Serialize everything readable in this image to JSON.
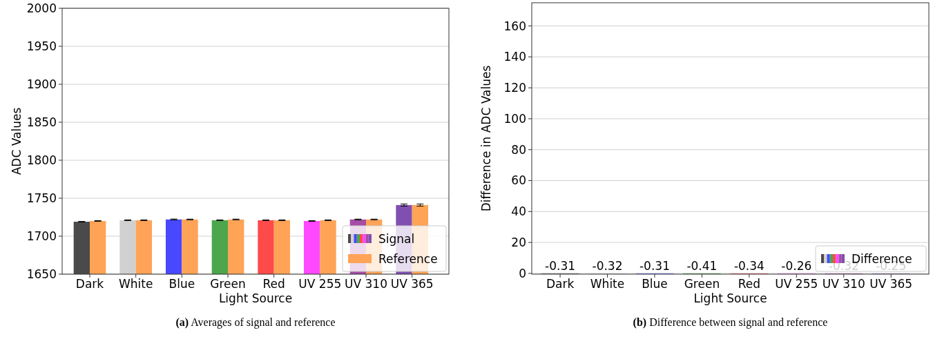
{
  "chart_data": [
    {
      "type": "bar",
      "xlabel": "Light Source",
      "ylabel": "ADC Values",
      "categories": [
        "Dark",
        "White",
        "Blue",
        "Green",
        "Red",
        "UV 255",
        "UV 310",
        "UV 365"
      ],
      "series": [
        {
          "name": "Signal",
          "colors": [
            "#4a4a4a",
            "#d0d0d0",
            "#4848ff",
            "#4ca64c",
            "#ff4a4a",
            "#ff48ff",
            "#a64ca6",
            "#8050b0"
          ],
          "values": [
            1719,
            1721,
            1722,
            1721,
            1721,
            1720,
            1722,
            1741
          ],
          "errors": [
            0.4,
            0.5,
            0.6,
            0.4,
            0.5,
            0.4,
            0.5,
            1.4
          ]
        },
        {
          "name": "Reference",
          "color": "#ffa357",
          "values": [
            1720,
            1721,
            1722,
            1722,
            1721,
            1721,
            1722,
            1741
          ],
          "errors": [
            0.4,
            0.5,
            0.5,
            0.5,
            0.5,
            0.5,
            0.5,
            1.4
          ]
        }
      ],
      "ylim": [
        1650,
        2000
      ],
      "yticks": [
        1650,
        1700,
        1750,
        1800,
        1850,
        1900,
        1950,
        2000
      ],
      "grid": "y",
      "legend": "bottom right",
      "annotations": [
        "(a) Averages of signal and reference"
      ]
    },
    {
      "type": "bar",
      "xlabel": "Light Source",
      "ylabel": "Difference in ADC Values",
      "categories": [
        "Dark",
        "White",
        "Blue",
        "Green",
        "Red",
        "UV 255",
        "UV 310",
        "UV 365"
      ],
      "series": [
        {
          "name": "Difference",
          "colors": [
            "#4a4a4a",
            "#d0d0d0",
            "#4848ff",
            "#4ca64c",
            "#ff4a4a",
            "#ff48ff",
            "#a64ca6",
            "#8050b0"
          ],
          "values": [
            -0.31,
            -0.32,
            -0.31,
            -0.41,
            -0.34,
            -0.26,
            -0.32,
            -0.25
          ]
        }
      ],
      "data_labels": true,
      "ylim": [
        -0.5,
        175
      ],
      "yticks": [
        0,
        20,
        40,
        60,
        80,
        100,
        120,
        140,
        160
      ],
      "grid": "y",
      "legend": "bottom right",
      "annotations": [
        "(b) Difference between signal and reference"
      ]
    }
  ]
}
